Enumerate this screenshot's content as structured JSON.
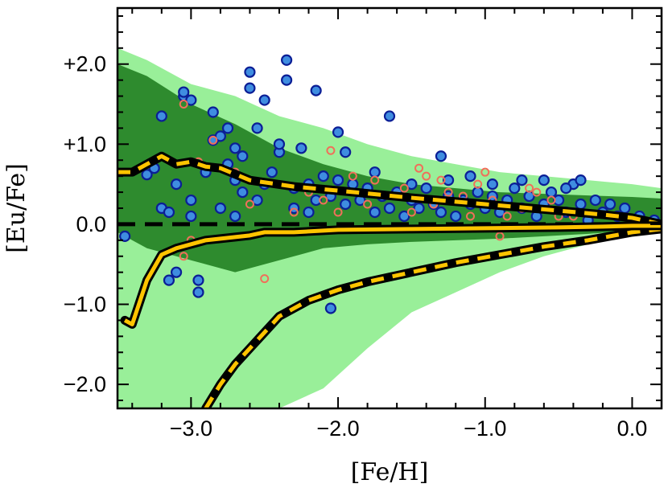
{
  "chart_data": {
    "type": "scatter",
    "xlabel": "[Fe/H]",
    "ylabel": "[Eu/Fe]",
    "xlim": [
      -3.5,
      0.2
    ],
    "ylim": [
      -2.3,
      2.7
    ],
    "xticks": [
      {
        "value": -3.0,
        "label": "−3.0"
      },
      {
        "value": -2.0,
        "label": "−2.0"
      },
      {
        "value": -1.0,
        "label": "−1.0"
      },
      {
        "value": 0.0,
        "label": "0.0"
      }
    ],
    "yticks": [
      {
        "value": 2.0,
        "label": "+2.0"
      },
      {
        "value": 1.0,
        "label": "+1.0"
      },
      {
        "value": 0.0,
        "label": "0.0"
      },
      {
        "value": -1.0,
        "label": "−1.0"
      },
      {
        "value": -2.0,
        "label": "−2.0"
      }
    ],
    "colors": {
      "band_outer": "#99ef99",
      "band_inner": "#2e8b2e",
      "filled_marker": "#3f8de0",
      "filled_marker_edge": "#0b1e96",
      "open_marker": "#f0705a",
      "model_line": "#ffc400",
      "model_outline": "#000000"
    },
    "band_outer": {
      "x": [
        -3.5,
        -3.3,
        -3.0,
        -2.7,
        -2.4,
        -2.1,
        -1.8,
        -1.5,
        -1.2,
        -0.9,
        -0.6,
        -0.3,
        0.0,
        0.2
      ],
      "upper": [
        2.2,
        2.05,
        1.75,
        1.6,
        1.35,
        1.2,
        1.0,
        0.85,
        0.75,
        0.65,
        0.6,
        0.55,
        0.5,
        0.45
      ],
      "lower": [
        -2.3,
        -2.3,
        -2.3,
        -2.3,
        -2.3,
        -2.05,
        -1.55,
        -1.1,
        -0.85,
        -0.6,
        -0.4,
        -0.25,
        -0.1,
        -0.1
      ]
    },
    "band_inner": {
      "x": [
        -3.5,
        -3.3,
        -3.0,
        -2.7,
        -2.4,
        -2.1,
        -1.8,
        -1.5,
        -1.2,
        -0.9,
        -0.6,
        -0.3,
        0.0,
        0.2
      ],
      "upper": [
        2.0,
        1.85,
        1.5,
        1.25,
        0.95,
        0.75,
        0.6,
        0.5,
        0.45,
        0.4,
        0.38,
        0.36,
        0.34,
        0.32
      ],
      "lower": [
        -0.1,
        -0.3,
        -0.45,
        -0.6,
        -0.45,
        -0.3,
        -0.25,
        -0.22,
        -0.2,
        -0.18,
        -0.15,
        -0.12,
        -0.08,
        -0.07
      ]
    },
    "model_median": {
      "x": [
        -3.45,
        -3.4,
        -3.3,
        -3.2,
        -3.1,
        -3.0,
        -2.9,
        -2.8,
        -2.7,
        -2.6,
        -2.5,
        -2.3,
        -2.0,
        -1.5,
        -1.0,
        -0.5,
        -0.2,
        0.0,
        0.2
      ],
      "y": [
        -1.2,
        -1.25,
        -0.7,
        -0.38,
        -0.3,
        -0.25,
        -0.2,
        -0.18,
        -0.16,
        -0.14,
        -0.1,
        -0.1,
        -0.07,
        -0.06,
        -0.05,
        -0.04,
        -0.03,
        -0.02,
        -0.02
      ]
    },
    "model_upper": {
      "x": [
        -3.5,
        -3.4,
        -3.3,
        -3.2,
        -3.1,
        -3.0,
        -2.9,
        -2.8,
        -2.6,
        -2.3,
        -2.0,
        -1.5,
        -1.0,
        -0.5,
        -0.2,
        0.0,
        0.2
      ],
      "y": [
        0.65,
        0.65,
        0.75,
        0.85,
        0.75,
        0.78,
        0.72,
        0.7,
        0.55,
        0.47,
        0.42,
        0.33,
        0.25,
        0.17,
        0.12,
        0.08,
        0.0
      ]
    },
    "model_lower": {
      "x": [
        -2.9,
        -2.8,
        -2.7,
        -2.6,
        -2.5,
        -2.4,
        -2.2,
        -2.0,
        -1.8,
        -1.5,
        -1.2,
        -0.9,
        -0.6,
        -0.3,
        0.0,
        0.2
      ],
      "y": [
        -2.3,
        -2.0,
        -1.75,
        -1.55,
        -1.35,
        -1.15,
        -0.95,
        -0.82,
        -0.72,
        -0.6,
        -0.48,
        -0.38,
        -0.28,
        -0.2,
        -0.1,
        -0.06
      ]
    },
    "reference_line_y": 0.0,
    "series": [
      {
        "marker": "filled-circle",
        "points": [
          [
            -3.45,
            -0.15
          ],
          [
            -3.3,
            0.62
          ],
          [
            -3.25,
            0.7
          ],
          [
            -3.2,
            1.35
          ],
          [
            -3.2,
            0.2
          ],
          [
            -3.15,
            0.15
          ],
          [
            -3.1,
            0.5
          ],
          [
            -3.05,
            1.6
          ],
          [
            -3.05,
            1.65
          ],
          [
            -3.0,
            1.55
          ],
          [
            -3.0,
            0.3
          ],
          [
            -2.95,
            -0.7
          ],
          [
            -2.95,
            -0.85
          ],
          [
            -3.1,
            -0.6
          ],
          [
            -3.15,
            -0.7
          ],
          [
            -3.0,
            0.1
          ],
          [
            -2.9,
            0.65
          ],
          [
            -2.85,
            1.4
          ],
          [
            -2.85,
            1.05
          ],
          [
            -2.8,
            1.1
          ],
          [
            -2.8,
            0.2
          ],
          [
            -2.75,
            0.75
          ],
          [
            -2.75,
            1.2
          ],
          [
            -2.7,
            0.95
          ],
          [
            -2.7,
            0.55
          ],
          [
            -2.7,
            0.1
          ],
          [
            -2.65,
            0.4
          ],
          [
            -2.65,
            0.85
          ],
          [
            -2.6,
            1.9
          ],
          [
            -2.6,
            1.7
          ],
          [
            -2.55,
            1.2
          ],
          [
            -2.55,
            0.3
          ],
          [
            -2.5,
            1.55
          ],
          [
            -2.5,
            0.5
          ],
          [
            -2.45,
            0.65
          ],
          [
            -2.4,
            0.9
          ],
          [
            -2.4,
            1.0
          ],
          [
            -2.35,
            2.05
          ],
          [
            -2.35,
            1.8
          ],
          [
            -2.3,
            0.45
          ],
          [
            -2.3,
            0.2
          ],
          [
            -2.25,
            0.95
          ],
          [
            -2.2,
            0.5
          ],
          [
            -2.2,
            0.15
          ],
          [
            -2.15,
            1.67
          ],
          [
            -2.15,
            0.3
          ],
          [
            -2.1,
            0.6
          ],
          [
            -2.05,
            -1.05
          ],
          [
            -2.05,
            0.35
          ],
          [
            -2.0,
            1.15
          ],
          [
            -2.0,
            0.55
          ],
          [
            -1.95,
            0.25
          ],
          [
            -1.9,
            0.5
          ],
          [
            -1.85,
            0.3
          ],
          [
            -1.8,
            0.45
          ],
          [
            -1.75,
            0.15
          ],
          [
            -1.7,
            0.35
          ],
          [
            -1.65,
            0.2
          ],
          [
            -1.6,
            0.4
          ],
          [
            -1.55,
            0.1
          ],
          [
            -1.5,
            0.3
          ],
          [
            -1.45,
            0.2
          ],
          [
            -1.4,
            0.45
          ],
          [
            -1.35,
            0.25
          ],
          [
            -1.3,
            0.15
          ],
          [
            -1.25,
            0.35
          ],
          [
            -1.2,
            0.1
          ],
          [
            -1.15,
            0.3
          ],
          [
            -1.1,
            0.25
          ],
          [
            -1.05,
            0.4
          ],
          [
            -1.0,
            0.2
          ],
          [
            -0.95,
            0.35
          ],
          [
            -0.9,
            0.15
          ],
          [
            -0.85,
            0.3
          ],
          [
            -0.8,
            0.45
          ],
          [
            -0.75,
            0.2
          ],
          [
            -0.7,
            0.35
          ],
          [
            -0.65,
            0.1
          ],
          [
            -0.6,
            0.25
          ],
          [
            -0.55,
            0.4
          ],
          [
            -0.5,
            0.3
          ],
          [
            -0.45,
            0.15
          ],
          [
            -0.4,
            0.5
          ],
          [
            -0.35,
            0.25
          ],
          [
            -0.3,
            0.05
          ],
          [
            -0.25,
            0.3
          ],
          [
            -0.2,
            0.15
          ],
          [
            -0.15,
            0.25
          ],
          [
            -0.1,
            0.1
          ],
          [
            -0.05,
            0.2
          ],
          [
            0.0,
            0.05
          ],
          [
            0.05,
            0.1
          ],
          [
            0.1,
            0.0
          ],
          [
            0.15,
            0.05
          ],
          [
            -1.95,
            0.9
          ],
          [
            -1.65,
            1.35
          ],
          [
            -1.3,
            0.85
          ],
          [
            -1.1,
            0.6
          ],
          [
            -0.75,
            0.55
          ],
          [
            -0.6,
            0.55
          ],
          [
            -0.35,
            0.55
          ],
          [
            -0.45,
            0.45
          ],
          [
            -1.75,
            0.65
          ],
          [
            -1.5,
            0.5
          ],
          [
            -1.25,
            0.55
          ],
          [
            -0.95,
            0.5
          ]
        ]
      },
      {
        "marker": "open-circle",
        "points": [
          [
            -3.05,
            1.5
          ],
          [
            -2.95,
            0.78
          ],
          [
            -3.05,
            -0.4
          ],
          [
            -3.0,
            -0.2
          ],
          [
            -2.85,
            1.05
          ],
          [
            -2.7,
            0.65
          ],
          [
            -2.6,
            0.25
          ],
          [
            -2.5,
            -0.68
          ],
          [
            -2.3,
            0.15
          ],
          [
            -2.2,
            0.4
          ],
          [
            -2.1,
            0.3
          ],
          [
            -2.05,
            0.92
          ],
          [
            -2.0,
            0.15
          ],
          [
            -1.9,
            0.6
          ],
          [
            -1.8,
            0.25
          ],
          [
            -1.75,
            0.55
          ],
          [
            -1.6,
            0.35
          ],
          [
            -1.5,
            0.15
          ],
          [
            -1.4,
            0.6
          ],
          [
            -1.35,
            0.25
          ],
          [
            -1.25,
            0.4
          ],
          [
            -1.15,
            0.35
          ],
          [
            -1.1,
            0.1
          ],
          [
            -1.05,
            0.5
          ],
          [
            -0.95,
            0.3
          ],
          [
            -0.85,
            0.1
          ],
          [
            -0.75,
            0.2
          ],
          [
            -0.65,
            0.4
          ],
          [
            -0.55,
            0.3
          ],
          [
            -0.5,
            0.1
          ],
          [
            -0.4,
            0.1
          ],
          [
            -0.3,
            -0.2
          ],
          [
            -0.9,
            -0.15
          ],
          [
            -1.3,
            0.55
          ],
          [
            -1.55,
            0.45
          ],
          [
            -1.45,
            0.7
          ],
          [
            -1.0,
            0.65
          ],
          [
            -0.7,
            0.45
          ]
        ]
      }
    ]
  }
}
